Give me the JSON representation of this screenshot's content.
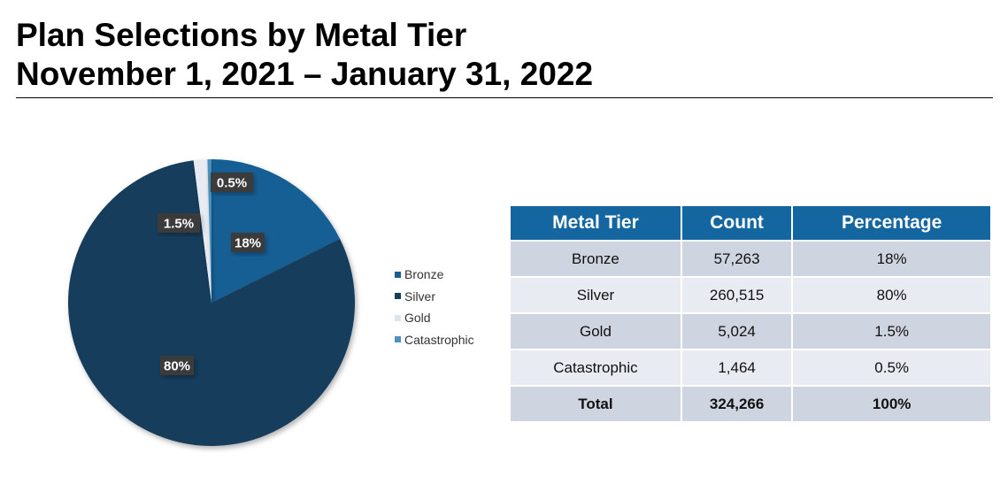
{
  "title_line1": "Plan Selections by Metal Tier",
  "title_line2": "November 1, 2021 – January 31, 2022",
  "chart_data": {
    "type": "pie",
    "categories": [
      "Bronze",
      "Silver",
      "Gold",
      "Catastrophic"
    ],
    "values": [
      57263,
      260515,
      5024,
      1464
    ],
    "data_labels": [
      "18%",
      "80%",
      "1.5%",
      "0.5%"
    ],
    "colors": [
      "#135f95",
      "#173d5b",
      "#e8ecf2",
      "#4a92bf"
    ],
    "legend_position": "right"
  },
  "table": {
    "headers": [
      "Metal Tier",
      "Count",
      "Percentage"
    ],
    "rows": [
      [
        "Bronze",
        "57,263",
        "18%"
      ],
      [
        "Silver",
        "260,515",
        "80%"
      ],
      [
        "Gold",
        "5,024",
        "1.5%"
      ],
      [
        "Catastrophic",
        "1,464",
        "0.5%"
      ]
    ],
    "total": [
      "Total",
      "324,266",
      "100%"
    ]
  }
}
